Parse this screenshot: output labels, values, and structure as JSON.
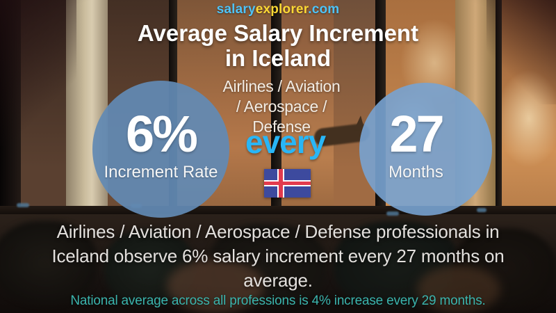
{
  "brand": {
    "salary": "salary",
    "explorer": "explorer",
    "dotcom": ".com"
  },
  "title": {
    "line1": "Average Salary Increment",
    "line2": "in Iceland"
  },
  "subtitle": {
    "lines": [
      "Airlines / Aviation",
      "/ Aerospace /",
      "Defense"
    ]
  },
  "every_label": "every",
  "stats": {
    "increment": {
      "value": "6%",
      "label": "Increment Rate"
    },
    "period": {
      "value": "27",
      "label": "Months"
    }
  },
  "summary": {
    "lines": [
      "Airlines / Aviation / Aerospace / Defense professionals in",
      "Iceland observe 6% salary increment every 27 months on",
      "average."
    ]
  },
  "footnote": {
    "text": "National average across all professions is 4% increase every 29 months."
  },
  "colors": {
    "logo_blue": "#4fc3f7",
    "logo_yellow": "#fdd835",
    "accent_blue": "#29b6f6",
    "left_circle": "#628ab4",
    "right_circle": "#78a3d2",
    "footnote_teal": "#3bb4ad",
    "flag_field": "#3d4a9e",
    "flag_cross": "#ffffff",
    "flag_inner_cross": "#e23b4e"
  }
}
